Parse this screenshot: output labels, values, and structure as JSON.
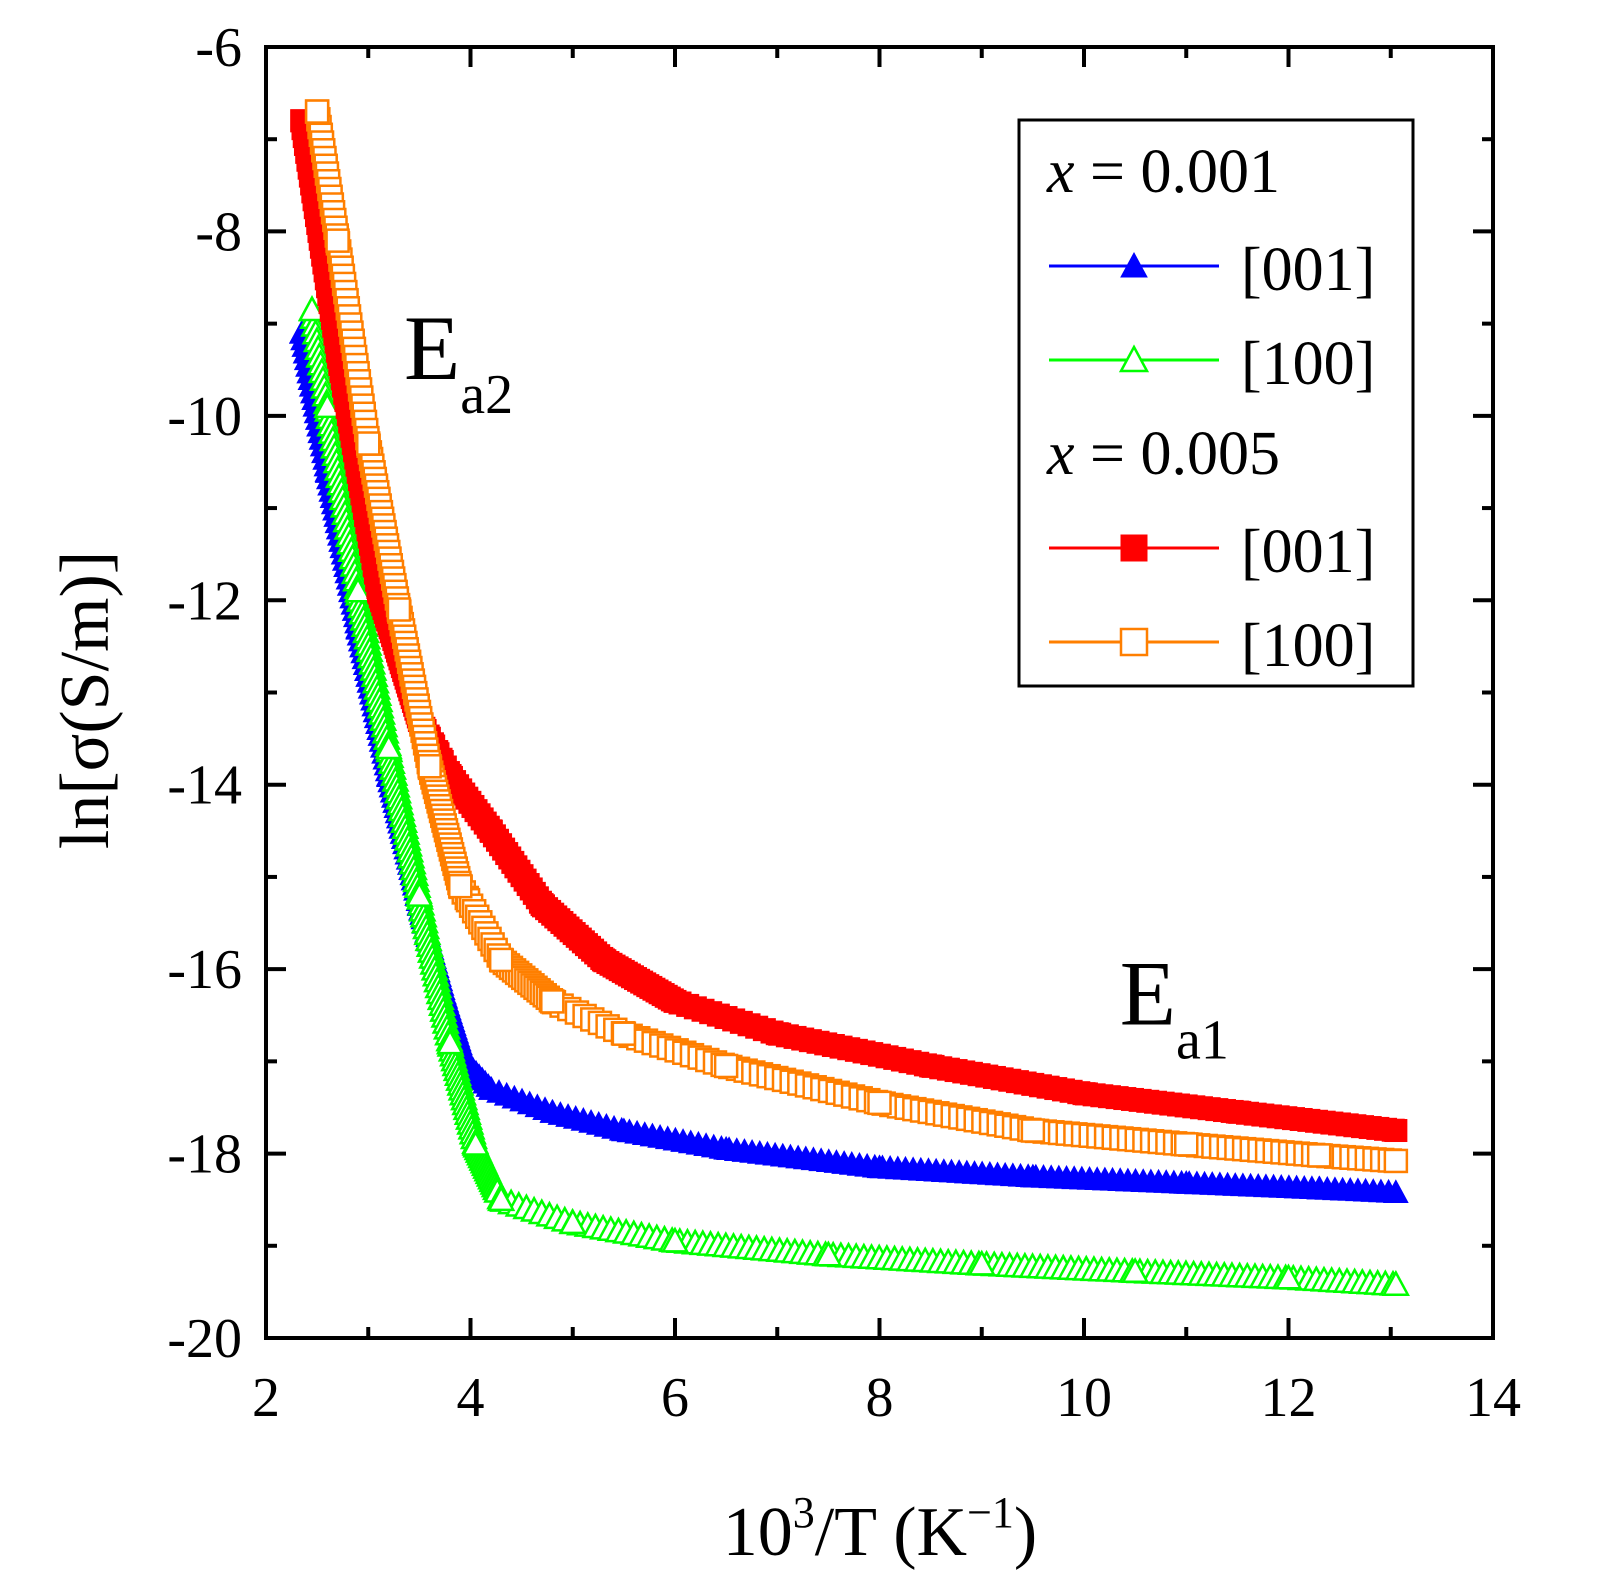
{
  "chart_data": {
    "type": "scatter",
    "title": "",
    "xlabel": {
      "base": "10",
      "sup": "3",
      "rest": "/T  (K",
      "unit_sup": "−1",
      "close": ")"
    },
    "ylabel": "ln[σ(S/m)]",
    "xlim": [
      2,
      14
    ],
    "ylim": [
      -20,
      -6
    ],
    "xticks": [
      2,
      4,
      6,
      8,
      10,
      12,
      14
    ],
    "yticks": [
      -6,
      -8,
      -10,
      -12,
      -14,
      -16,
      -18,
      -20
    ],
    "xtick_labels": [
      "2",
      "4",
      "6",
      "8",
      "10",
      "12",
      "14"
    ],
    "ytick_labels": [
      "-6",
      "-8",
      "-10",
      "-12",
      "-14",
      "-16",
      "-18",
      "-20"
    ],
    "legend": {
      "placement": "top-right",
      "groups": [
        {
          "prefix": "x",
          "value": " = 0.001",
          "entries": [
            "[001]",
            "[100]"
          ]
        },
        {
          "prefix": "x",
          "value": " = 0.005",
          "entries": [
            "[001]",
            "[100]"
          ]
        }
      ]
    },
    "annotations": [
      {
        "base": "E",
        "sub": "a2",
        "x": 3.35,
        "y": -9.6
      },
      {
        "base": "E",
        "sub": "a1",
        "x": 10.35,
        "y": -16.6
      }
    ],
    "series": [
      {
        "name": "x = 0.001 [001]",
        "color": "#0000ff",
        "marker": "triangle-filled",
        "x": [
          2.35,
          2.6,
          2.9,
          3.2,
          3.5,
          3.75,
          3.95,
          4.2,
          4.8,
          5.5,
          6.5,
          8,
          9.5,
          11,
          12.3,
          13.05
        ],
        "y": [
          -9.1,
          -10.6,
          -12.3,
          -13.9,
          -15.3,
          -16.3,
          -17.0,
          -17.3,
          -17.55,
          -17.75,
          -17.95,
          -18.15,
          -18.25,
          -18.32,
          -18.38,
          -18.42
        ]
      },
      {
        "name": "x = 0.001 [100]",
        "color": "#00ff00",
        "marker": "triangle-open",
        "x": [
          2.45,
          2.6,
          2.9,
          3.2,
          3.5,
          3.8,
          4.05,
          4.3,
          5,
          6,
          7.5,
          9,
          10.5,
          12,
          13.05
        ],
        "y": [
          -8.85,
          -9.9,
          -11.9,
          -13.6,
          -15.2,
          -16.8,
          -17.9,
          -18.5,
          -18.75,
          -18.95,
          -19.1,
          -19.2,
          -19.28,
          -19.35,
          -19.42
        ]
      },
      {
        "name": "x = 0.005 [001]",
        "color": "#ff0000",
        "marker": "square-filled",
        "x": [
          2.35,
          2.7,
          3.1,
          3.5,
          3.8,
          4.2,
          4.7,
          5.3,
          6.0,
          7.0,
          8.5,
          10,
          11.5,
          13.05
        ],
        "y": [
          -6.8,
          -9.3,
          -11.9,
          -13.3,
          -13.9,
          -14.5,
          -15.3,
          -15.9,
          -16.35,
          -16.7,
          -17.05,
          -17.35,
          -17.55,
          -17.75
        ]
      },
      {
        "name": "x = 0.005 [100]",
        "color": "#ff7f00",
        "marker": "square-open",
        "x": [
          2.5,
          2.7,
          3.0,
          3.3,
          3.6,
          3.9,
          4.3,
          4.8,
          5.5,
          6.5,
          8,
          9.5,
          11,
          12.3,
          13.05
        ],
        "y": [
          -6.7,
          -8.1,
          -10.3,
          -12.1,
          -13.8,
          -15.1,
          -15.9,
          -16.35,
          -16.7,
          -17.05,
          -17.45,
          -17.75,
          -17.9,
          -18.02,
          -18.08
        ]
      }
    ]
  }
}
